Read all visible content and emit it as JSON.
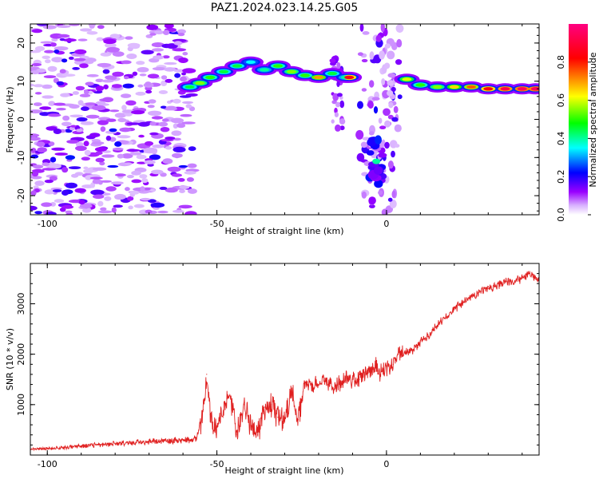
{
  "title": "PAZ1.2024.023.14.25.G05",
  "chart_data": [
    {
      "type": "heatmap",
      "title": "PAZ1.2024.023.14.25.G05",
      "xlabel": "Height of straight line (km)",
      "ylabel": "Frequency (Hz)",
      "xlim": [
        -105,
        45
      ],
      "ylim": [
        -25,
        25
      ],
      "xticks": [
        -100,
        -50,
        0
      ],
      "yticks": [
        -20,
        -10,
        0,
        10,
        20
      ],
      "colorbar": {
        "label": "Normalized spectral amplitude",
        "range": [
          0,
          1
        ],
        "ticks": [
          0.0,
          0.2,
          0.4,
          0.6,
          0.8
        ],
        "tick_labels": [
          "0.0",
          "0.2",
          "0.4",
          "0.6",
          "0.8"
        ],
        "colors": [
          "#ffffff",
          "#9a00ff",
          "#0000ff",
          "#00ffff",
          "#00ff00",
          "#ffff00",
          "#ff0000",
          "#ff0080"
        ]
      },
      "ridge": [
        {
          "x": -58,
          "y": 8.5,
          "a": 0.45
        },
        {
          "x": -55,
          "y": 9.5,
          "a": 0.55
        },
        {
          "x": -52,
          "y": 11.0,
          "a": 0.5
        },
        {
          "x": -48,
          "y": 12.5,
          "a": 0.45
        },
        {
          "x": -44,
          "y": 14.0,
          "a": 0.45
        },
        {
          "x": -40,
          "y": 15.0,
          "a": 0.35
        },
        {
          "x": -36,
          "y": 13.0,
          "a": 0.4
        },
        {
          "x": -32,
          "y": 14.0,
          "a": 0.5
        },
        {
          "x": -28,
          "y": 12.5,
          "a": 0.55
        },
        {
          "x": -24,
          "y": 11.5,
          "a": 0.5
        },
        {
          "x": -20,
          "y": 11.0,
          "a": 0.7
        },
        {
          "x": -16,
          "y": 12.0,
          "a": 0.45
        },
        {
          "x": -12,
          "y": 11.0,
          "a": 0.4
        },
        {
          "x": -11,
          "y": 11.0,
          "a": 0.85
        },
        {
          "x": 6,
          "y": 10.5,
          "a": 0.6
        },
        {
          "x": 10,
          "y": 9.0,
          "a": 0.5
        },
        {
          "x": 15,
          "y": 8.5,
          "a": 0.55
        },
        {
          "x": 20,
          "y": 8.5,
          "a": 0.65
        },
        {
          "x": 25,
          "y": 8.5,
          "a": 0.75
        },
        {
          "x": 30,
          "y": 8.0,
          "a": 0.85
        },
        {
          "x": 35,
          "y": 8.0,
          "a": 0.92
        },
        {
          "x": 40,
          "y": 8.0,
          "a": 0.95
        },
        {
          "x": 44,
          "y": 8.0,
          "a": 0.95
        }
      ],
      "secondary_blob": {
        "x": -3,
        "y": -11,
        "a": 0.4
      }
    },
    {
      "type": "line",
      "xlabel": "Height of straight line (km)",
      "ylabel": "SNR (10 * v/v)",
      "xlim": [
        -105,
        45
      ],
      "ylim": [
        0,
        3800
      ],
      "xticks": [
        -100,
        -50,
        0
      ],
      "yticks": [
        1000,
        2000,
        3000
      ],
      "color": "#e02020",
      "series": [
        {
          "x": [
            -105,
            -100,
            -95,
            -90,
            -85,
            -80,
            -75,
            -70,
            -65,
            -60,
            -56,
            -54,
            -53,
            -52,
            -50,
            -48,
            -46,
            -44,
            -42,
            -40,
            -38,
            -36,
            -34,
            -32,
            -30,
            -28,
            -26,
            -24,
            -22,
            -20,
            -18,
            -16,
            -14,
            -12,
            -10,
            -8,
            -6,
            -4,
            -3,
            -2,
            0,
            2,
            4,
            6,
            8,
            10,
            12,
            14,
            16,
            18,
            20,
            22,
            24,
            26,
            28,
            30,
            32,
            34,
            36,
            38,
            40,
            42,
            45
          ],
          "y": [
            120,
            130,
            150,
            180,
            200,
            230,
            250,
            260,
            280,
            290,
            320,
            900,
            1600,
            800,
            550,
            900,
            1150,
            400,
            1000,
            600,
            400,
            950,
            1000,
            750,
            650,
            1250,
            700,
            1450,
            1350,
            1400,
            1500,
            1350,
            1400,
            1550,
            1500,
            1500,
            1650,
            1700,
            1800,
            1600,
            1750,
            1800,
            2000,
            2050,
            2100,
            2250,
            2350,
            2500,
            2650,
            2750,
            2900,
            3000,
            3100,
            3150,
            3250,
            3300,
            3350,
            3400,
            3450,
            3450,
            3500,
            3600,
            3450
          ]
        }
      ]
    }
  ]
}
